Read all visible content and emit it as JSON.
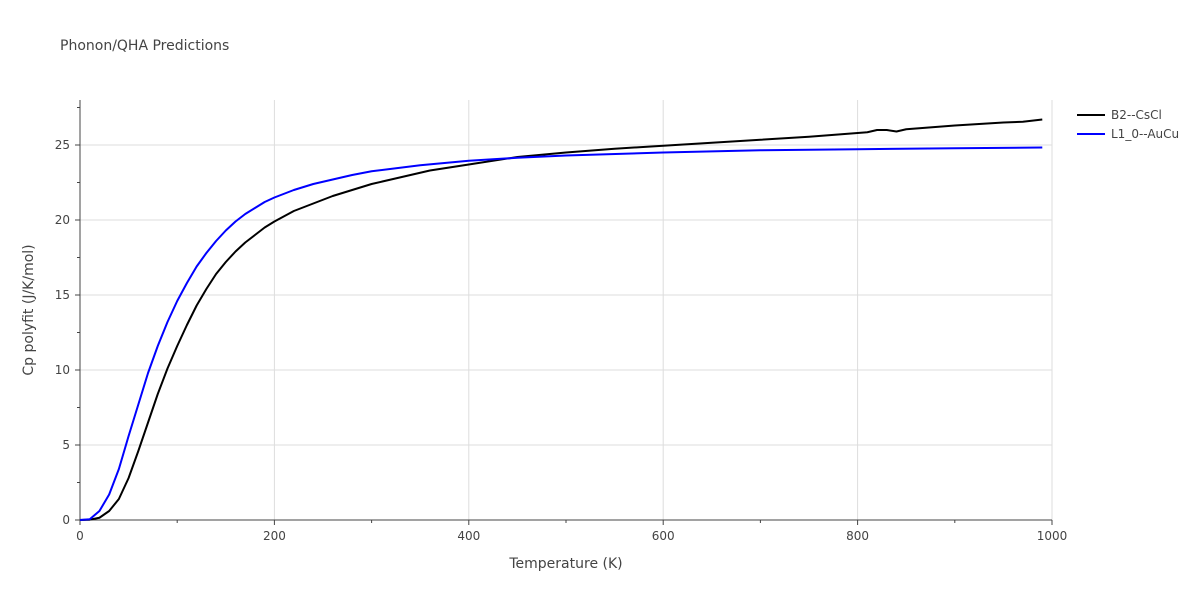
{
  "chart_data": {
    "type": "line",
    "title": "Phonon/QHA Predictions",
    "xlabel": "Temperature (K)",
    "ylabel": "Cp polyfit (J/K/mol)",
    "xlim": [
      0,
      1000
    ],
    "ylim": [
      0,
      28
    ],
    "x_ticks": [
      0,
      200,
      400,
      600,
      800,
      1000
    ],
    "y_ticks": [
      0,
      5,
      10,
      15,
      20,
      25
    ],
    "grid": true,
    "legend_position": "top-right",
    "series": [
      {
        "name": "B2--CsCl",
        "color": "#000000",
        "points": [
          [
            0,
            0
          ],
          [
            10,
            0.02
          ],
          [
            20,
            0.15
          ],
          [
            30,
            0.6
          ],
          [
            40,
            1.4
          ],
          [
            50,
            2.8
          ],
          [
            60,
            4.6
          ],
          [
            70,
            6.5
          ],
          [
            80,
            8.4
          ],
          [
            90,
            10.1
          ],
          [
            100,
            11.6
          ],
          [
            110,
            13.0
          ],
          [
            120,
            14.3
          ],
          [
            130,
            15.4
          ],
          [
            140,
            16.4
          ],
          [
            150,
            17.2
          ],
          [
            160,
            17.9
          ],
          [
            170,
            18.5
          ],
          [
            180,
            19.0
          ],
          [
            190,
            19.5
          ],
          [
            200,
            19.9
          ],
          [
            220,
            20.6
          ],
          [
            240,
            21.1
          ],
          [
            260,
            21.6
          ],
          [
            280,
            22.0
          ],
          [
            300,
            22.4
          ],
          [
            320,
            22.7
          ],
          [
            340,
            23.0
          ],
          [
            360,
            23.3
          ],
          [
            380,
            23.5
          ],
          [
            400,
            23.7
          ],
          [
            450,
            24.2
          ],
          [
            500,
            24.5
          ],
          [
            550,
            24.75
          ],
          [
            600,
            24.95
          ],
          [
            650,
            25.15
          ],
          [
            700,
            25.35
          ],
          [
            750,
            25.55
          ],
          [
            800,
            25.8
          ],
          [
            810,
            25.85
          ],
          [
            820,
            26.0
          ],
          [
            830,
            26.0
          ],
          [
            840,
            25.9
          ],
          [
            850,
            26.05
          ],
          [
            860,
            26.1
          ],
          [
            870,
            26.15
          ],
          [
            900,
            26.3
          ],
          [
            950,
            26.5
          ],
          [
            970,
            26.55
          ],
          [
            990,
            26.7
          ]
        ]
      },
      {
        "name": "L1_0--AuCu",
        "color": "#0000ff",
        "points": [
          [
            0,
            0
          ],
          [
            10,
            0.05
          ],
          [
            20,
            0.6
          ],
          [
            30,
            1.7
          ],
          [
            40,
            3.4
          ],
          [
            50,
            5.6
          ],
          [
            60,
            7.7
          ],
          [
            70,
            9.8
          ],
          [
            80,
            11.6
          ],
          [
            90,
            13.2
          ],
          [
            100,
            14.6
          ],
          [
            110,
            15.8
          ],
          [
            120,
            16.9
          ],
          [
            130,
            17.8
          ],
          [
            140,
            18.6
          ],
          [
            150,
            19.3
          ],
          [
            160,
            19.9
          ],
          [
            170,
            20.4
          ],
          [
            180,
            20.8
          ],
          [
            190,
            21.2
          ],
          [
            200,
            21.5
          ],
          [
            220,
            22.0
          ],
          [
            240,
            22.4
          ],
          [
            260,
            22.7
          ],
          [
            280,
            23.0
          ],
          [
            300,
            23.25
          ],
          [
            350,
            23.65
          ],
          [
            400,
            23.95
          ],
          [
            450,
            24.15
          ],
          [
            500,
            24.3
          ],
          [
            600,
            24.5
          ],
          [
            700,
            24.65
          ],
          [
            800,
            24.72
          ],
          [
            900,
            24.78
          ],
          [
            990,
            24.83
          ]
        ]
      }
    ]
  }
}
